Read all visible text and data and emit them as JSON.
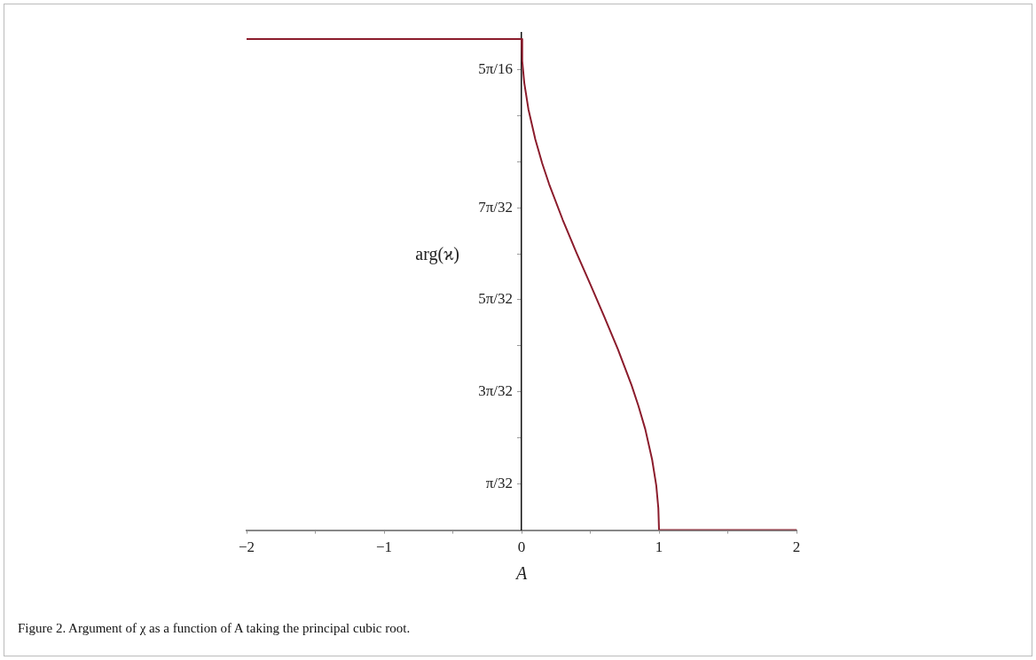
{
  "chart_data": {
    "type": "line",
    "xlabel": "A",
    "ylabel": "arg(ϰ)",
    "annotations": [
      "Figure 2. Argument of χ as a function of A taking the principal cubic root."
    ],
    "series": [
      {
        "color": "#8b1c2c",
        "x": [
          -2,
          0,
          0.005,
          0.02,
          0.05,
          0.1,
          0.15,
          0.2,
          0.3,
          0.4,
          0.5,
          0.6,
          0.7,
          0.8,
          0.85,
          0.9,
          0.95,
          0.98,
          0.995,
          1,
          2
        ],
        "values": [
          1.047,
          1.047,
          1.0,
          0.953,
          0.897,
          0.833,
          0.782,
          0.738,
          0.661,
          0.591,
          0.524,
          0.456,
          0.386,
          0.309,
          0.265,
          0.215,
          0.15,
          0.095,
          0.047,
          0,
          0
        ]
      }
    ],
    "xlim": [
      -2,
      2
    ],
    "xticks": [
      {
        "value": -2,
        "label": "−2"
      },
      {
        "value": -1.5,
        "label": null
      },
      {
        "value": -1,
        "label": "−1"
      },
      {
        "value": -0.5,
        "label": null
      },
      0,
      {
        "value": 0.5,
        "label": null
      },
      1,
      {
        "value": 1.5,
        "label": null
      },
      2
    ],
    "ylim": [
      0,
      1.06
    ],
    "yticks": [
      {
        "value": 0.098,
        "label": "π/32"
      },
      {
        "value": 0.196,
        "label": null
      },
      {
        "value": 0.295,
        "label": "3π/32"
      },
      {
        "value": 0.393,
        "label": null
      },
      {
        "value": 0.491,
        "label": "5π/32"
      },
      {
        "value": 0.589,
        "label": null
      },
      {
        "value": 0.687,
        "label": "7π/32"
      },
      {
        "value": 0.785,
        "label": null
      },
      {
        "value": 0.884,
        "label": null
      },
      {
        "value": 0.982,
        "label": "5π/16"
      }
    ],
    "grid": false,
    "legend": false,
    "marker": "none",
    "line_style": "solid"
  }
}
